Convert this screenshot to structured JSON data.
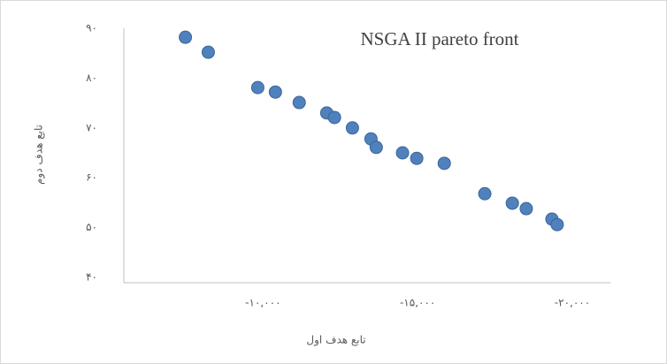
{
  "chart_data": {
    "type": "scatter",
    "title": "NSGA II pareto front",
    "x_label": "تابع هدف اول",
    "y_label": "تابع هدف دوم",
    "series": [
      {
        "color": "#4f81bd",
        "x": [
          -7490,
          -8230,
          -9830,
          -10400,
          -11170,
          -12060,
          -12310,
          -12890,
          -13490,
          -13660,
          -14510,
          -14970,
          -15860,
          -17170,
          -18060,
          -18510,
          -19340,
          -19510
        ],
        "values": [
          88.2,
          85.2,
          78.1,
          77.2,
          75.1,
          73.0,
          72.1,
          70.0,
          67.8,
          66.1,
          65.0,
          63.9,
          62.9,
          56.8,
          54.9,
          53.8,
          51.7,
          50.6
        ]
      }
    ],
    "xlim": [
      -5500,
      -21230
    ],
    "xticks": [
      {
        "value": -10000,
        "label": "-۱۰,۰۰۰"
      },
      {
        "value": -15000,
        "label": "-۱۵,۰۰۰"
      },
      {
        "value": -20000,
        "label": "-۲۰,۰۰۰"
      }
    ],
    "ylim": [
      40,
      90
    ],
    "yticks": [
      {
        "value": 40,
        "label": "۴۰"
      },
      {
        "value": 50,
        "label": "۵۰"
      },
      {
        "value": 60,
        "label": "۶۰"
      },
      {
        "value": 70,
        "label": "۷۰"
      },
      {
        "value": 80,
        "label": "۸۰"
      },
      {
        "value": 90,
        "label": "۹۰"
      }
    ]
  }
}
